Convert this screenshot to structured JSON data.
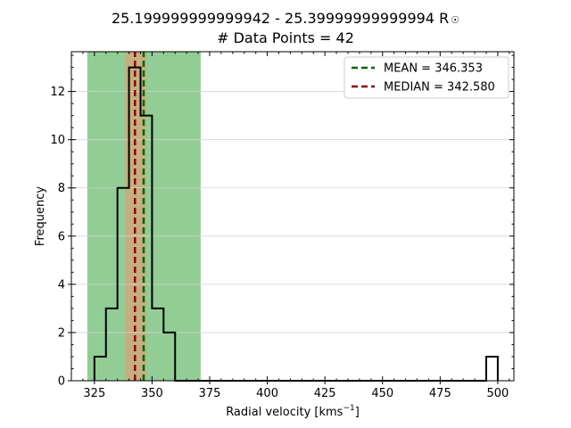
{
  "header": {
    "title_line1": "25.199999999999942 - 25.39999999999994 R",
    "title_symbol": "☉",
    "title_line2": "# Data Points = 42"
  },
  "chart_data": {
    "type": "bar",
    "style": "step-histogram",
    "xlabel": "Radial velocity [kms",
    "xlabel_sup": "−1",
    "xlabel_suffix": "]",
    "ylabel": "Frequency",
    "xlim": [
      315,
      507
    ],
    "ylim": [
      0,
      13.65
    ],
    "xticks": [
      325,
      350,
      375,
      400,
      425,
      450,
      475,
      500
    ],
    "yticks": [
      0,
      2,
      4,
      6,
      8,
      10,
      12
    ],
    "grid": "horizontal",
    "bin_edges": [
      325,
      330,
      335,
      340,
      345,
      350,
      355,
      360,
      365,
      370,
      375,
      380,
      385,
      390,
      395,
      400,
      405,
      410,
      415,
      420,
      425,
      430,
      435,
      440,
      445,
      450,
      455,
      460,
      465,
      470,
      475,
      480,
      485,
      490,
      495,
      500
    ],
    "counts": [
      1,
      3,
      8,
      13,
      11,
      3,
      2,
      0,
      0,
      0,
      0,
      0,
      0,
      0,
      0,
      0,
      0,
      0,
      0,
      0,
      0,
      0,
      0,
      0,
      0,
      0,
      0,
      0,
      0,
      0,
      0,
      0,
      0,
      0,
      1
    ],
    "bands": [
      {
        "from": 321.9,
        "to": 371.1,
        "color": "#77c17a"
      },
      {
        "from": 338.4,
        "to": 347.5,
        "color": "#d2a67a"
      }
    ],
    "lines": [
      {
        "name": "MEAN = 346.353",
        "x": 346.353,
        "color": "#006400"
      },
      {
        "name": "MEDIAN = 342.580",
        "x": 342.58,
        "color": "#8b0000"
      }
    ],
    "legend_position": "top-right",
    "colors": {
      "histogram": "#000000",
      "grid": "#d3d3d3",
      "mean": "#006400",
      "median": "#8b0000"
    }
  }
}
